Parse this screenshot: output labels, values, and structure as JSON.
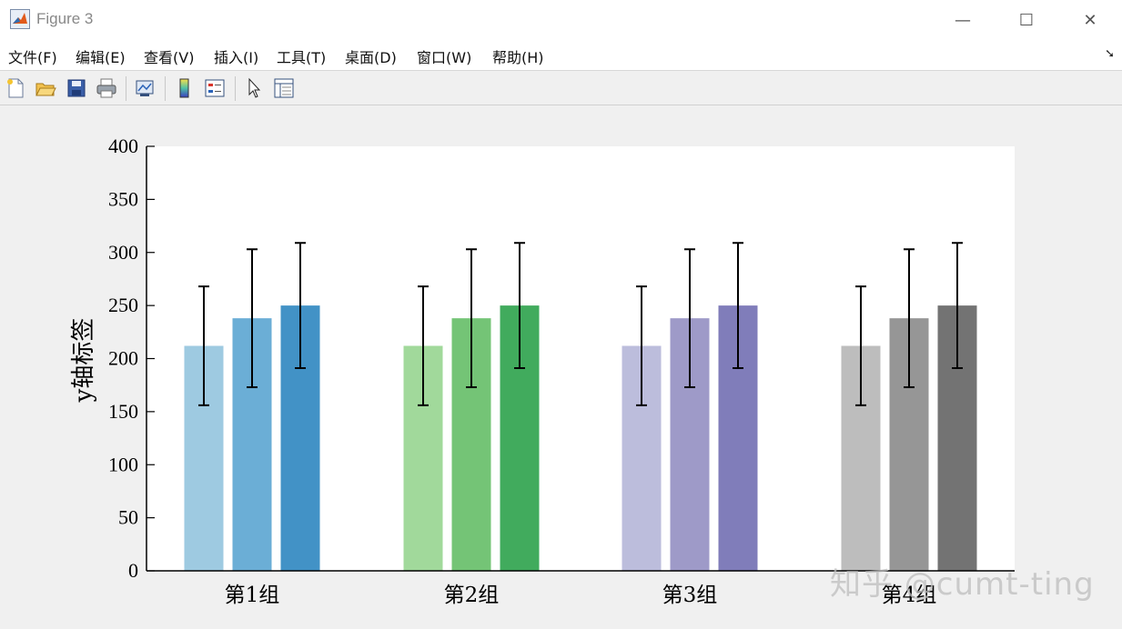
{
  "window": {
    "title": "Figure 3",
    "controls": {
      "minimize": "—",
      "maximize": "☐",
      "close": "✕"
    }
  },
  "menu": [
    "文件(F)",
    "编辑(E)",
    "查看(V)",
    "插入(I)",
    "工具(T)",
    "桌面(D)",
    "窗口(W)",
    "帮助(H)"
  ],
  "toolbar": {
    "icons": [
      "new-figure-icon",
      "open-icon",
      "save-icon",
      "print-icon",
      "link-plot-icon",
      "colorbar-icon",
      "legend-icon",
      "pointer-icon",
      "property-inspector-icon"
    ]
  },
  "watermark": "知乎 @cumt-ting",
  "chart_data": {
    "type": "bar",
    "categories": [
      "第1组",
      "第2组",
      "第3组",
      "第4组"
    ],
    "ylabel": "y轴标签",
    "xlabel": "",
    "title": "",
    "ylim": [
      0,
      400
    ],
    "yticks": [
      0,
      50,
      100,
      150,
      200,
      250,
      300,
      350,
      400
    ],
    "grid": false,
    "series": [
      {
        "values": [
          212,
          212,
          212,
          212
        ],
        "errors": [
          56,
          56,
          56,
          56
        ]
      },
      {
        "values": [
          238,
          238,
          238,
          238
        ],
        "errors": [
          65,
          65,
          65,
          65
        ]
      },
      {
        "values": [
          250,
          250,
          250,
          250
        ],
        "errors": [
          59,
          59,
          59,
          59
        ]
      }
    ],
    "colors": [
      [
        "#9ecae1",
        "#6baed6",
        "#4292c6"
      ],
      [
        "#a1d99b",
        "#74c476",
        "#41ab5d"
      ],
      [
        "#bcbddc",
        "#9e9ac8",
        "#807dba"
      ],
      [
        "#bdbdbd",
        "#969696",
        "#737373"
      ]
    ]
  }
}
